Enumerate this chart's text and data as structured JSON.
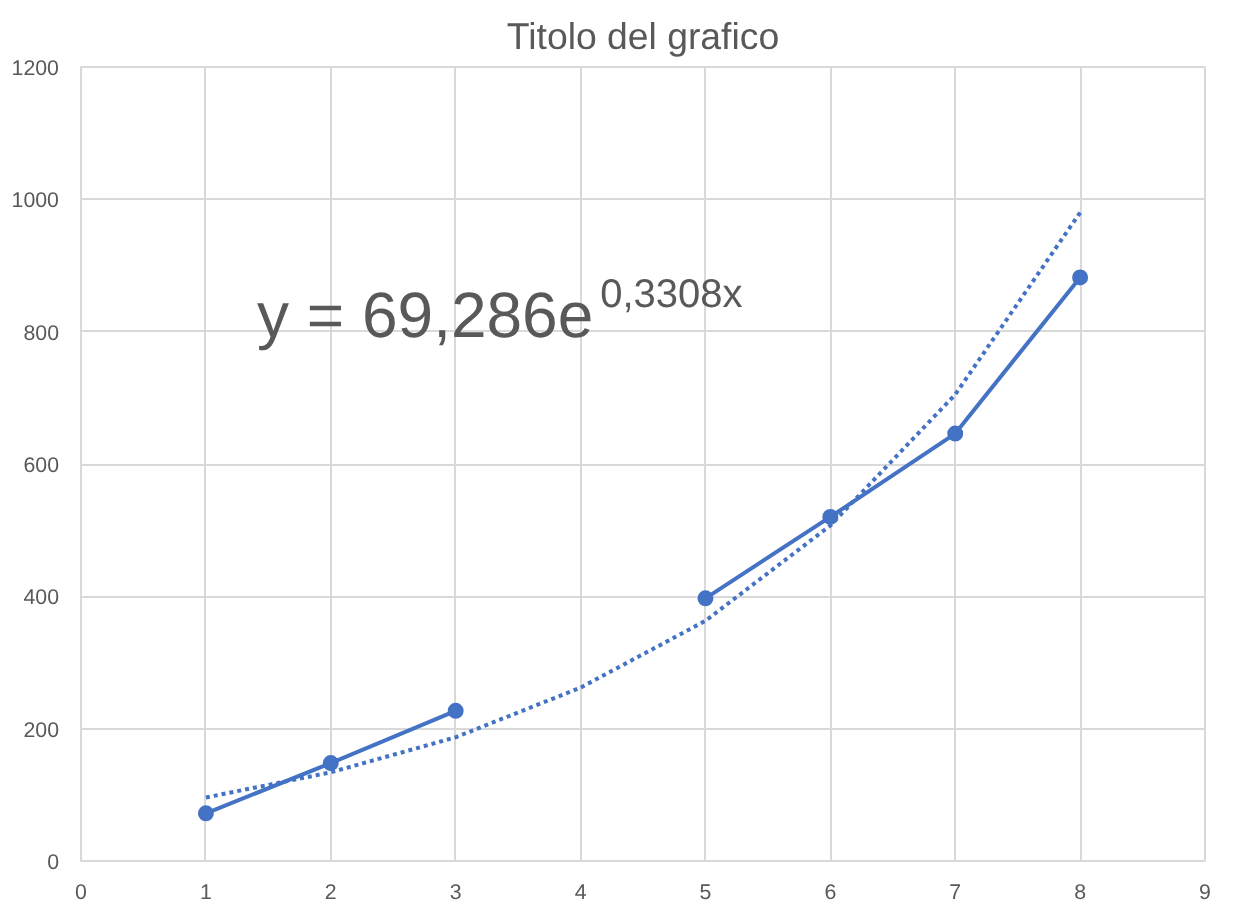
{
  "chart_data": {
    "type": "line",
    "title": "Titolo del grafico",
    "x": [
      1,
      2,
      3,
      4,
      5,
      6,
      7,
      8
    ],
    "series": [
      {
        "color": "#4472c4",
        "values": [
          72,
          148,
          227,
          null,
          397,
          520,
          646,
          882
        ],
        "marker": "circle",
        "line_style": "solid"
      },
      {
        "type": "line",
        "color": "#4472c4",
        "x": [
          1,
          2,
          3,
          4,
          5,
          6,
          7,
          8
        ],
        "values": [
          96,
          134,
          187,
          262,
          363,
          507,
          705,
          980
        ],
        "marker": "none",
        "line_style": "dotted"
      }
    ],
    "annotations": [
      "y = 69,286e$^{0,3308x}$"
    ],
    "xlim": [
      0,
      9
    ],
    "xticks": [
      0,
      1,
      2,
      3,
      4,
      5,
      6,
      7,
      8,
      9
    ],
    "ylim": [
      0,
      1200
    ],
    "yticks": [
      0,
      200,
      400,
      600,
      800,
      1000,
      1200
    ],
    "grid": true
  }
}
